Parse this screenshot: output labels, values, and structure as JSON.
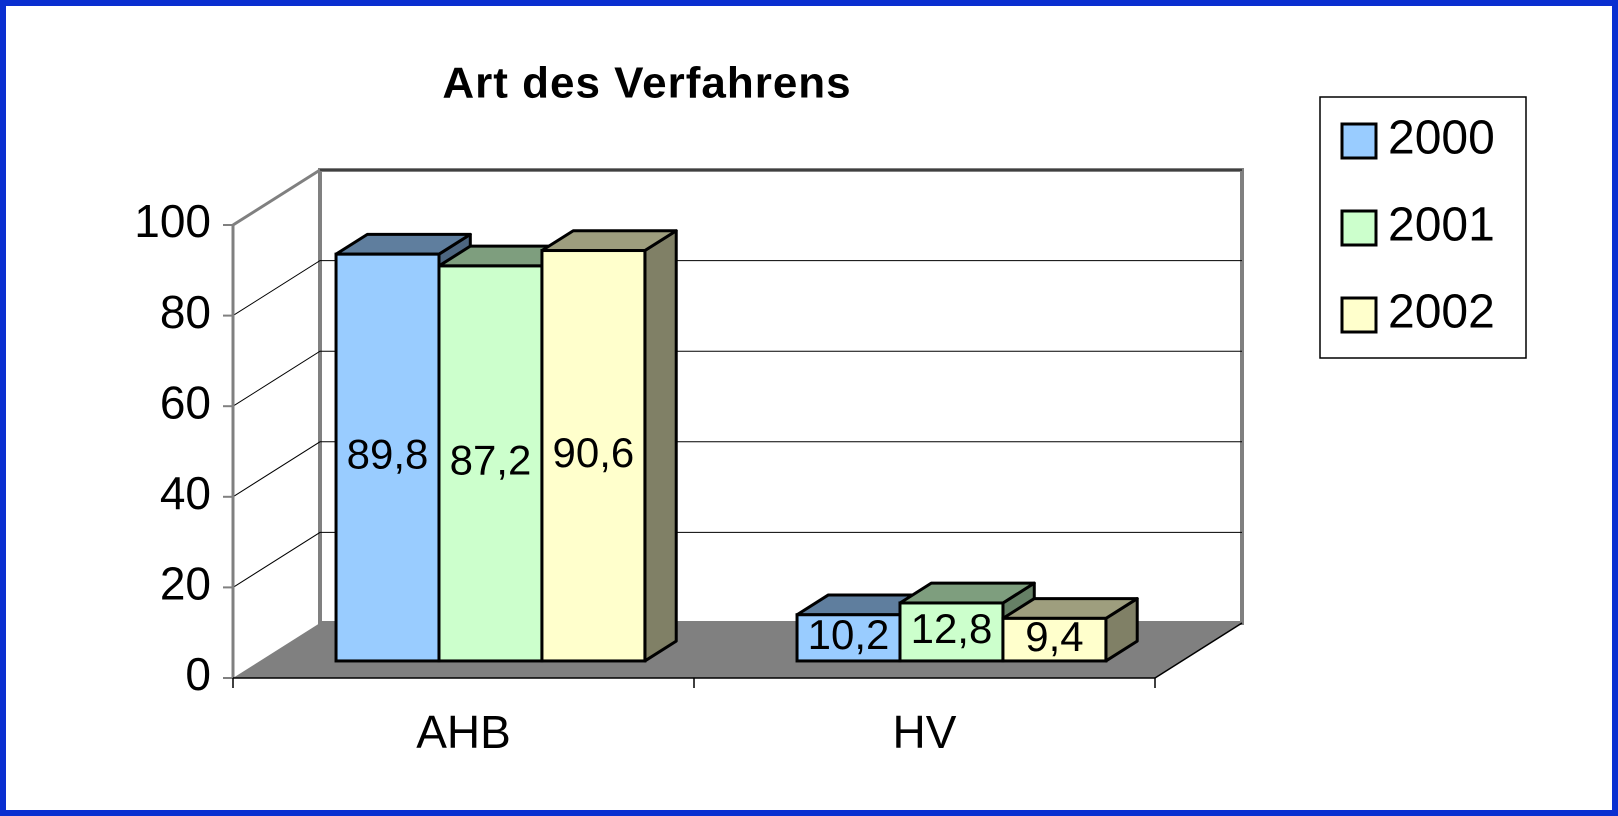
{
  "chart_data": {
    "type": "bar3d",
    "title": "Art des Verfahrens",
    "categories": [
      "AHB",
      "HV"
    ],
    "series": [
      {
        "name": "2000",
        "color": "#99ccff",
        "values": [
          89.8,
          10.2
        ],
        "value_labels": [
          "89,8",
          "10,2"
        ]
      },
      {
        "name": "2001",
        "color": "#ccffcc",
        "values": [
          87.2,
          12.8
        ],
        "value_labels": [
          "87,2",
          "12,8"
        ]
      },
      {
        "name": "2002",
        "color": "#ffffcc",
        "values": [
          90.6,
          9.4
        ],
        "value_labels": [
          "90,6",
          "9,4"
        ]
      }
    ],
    "ylim": [
      0,
      100
    ],
    "yticks": [
      0,
      20,
      40,
      60,
      80,
      100
    ],
    "grid": true,
    "legend": "right"
  }
}
